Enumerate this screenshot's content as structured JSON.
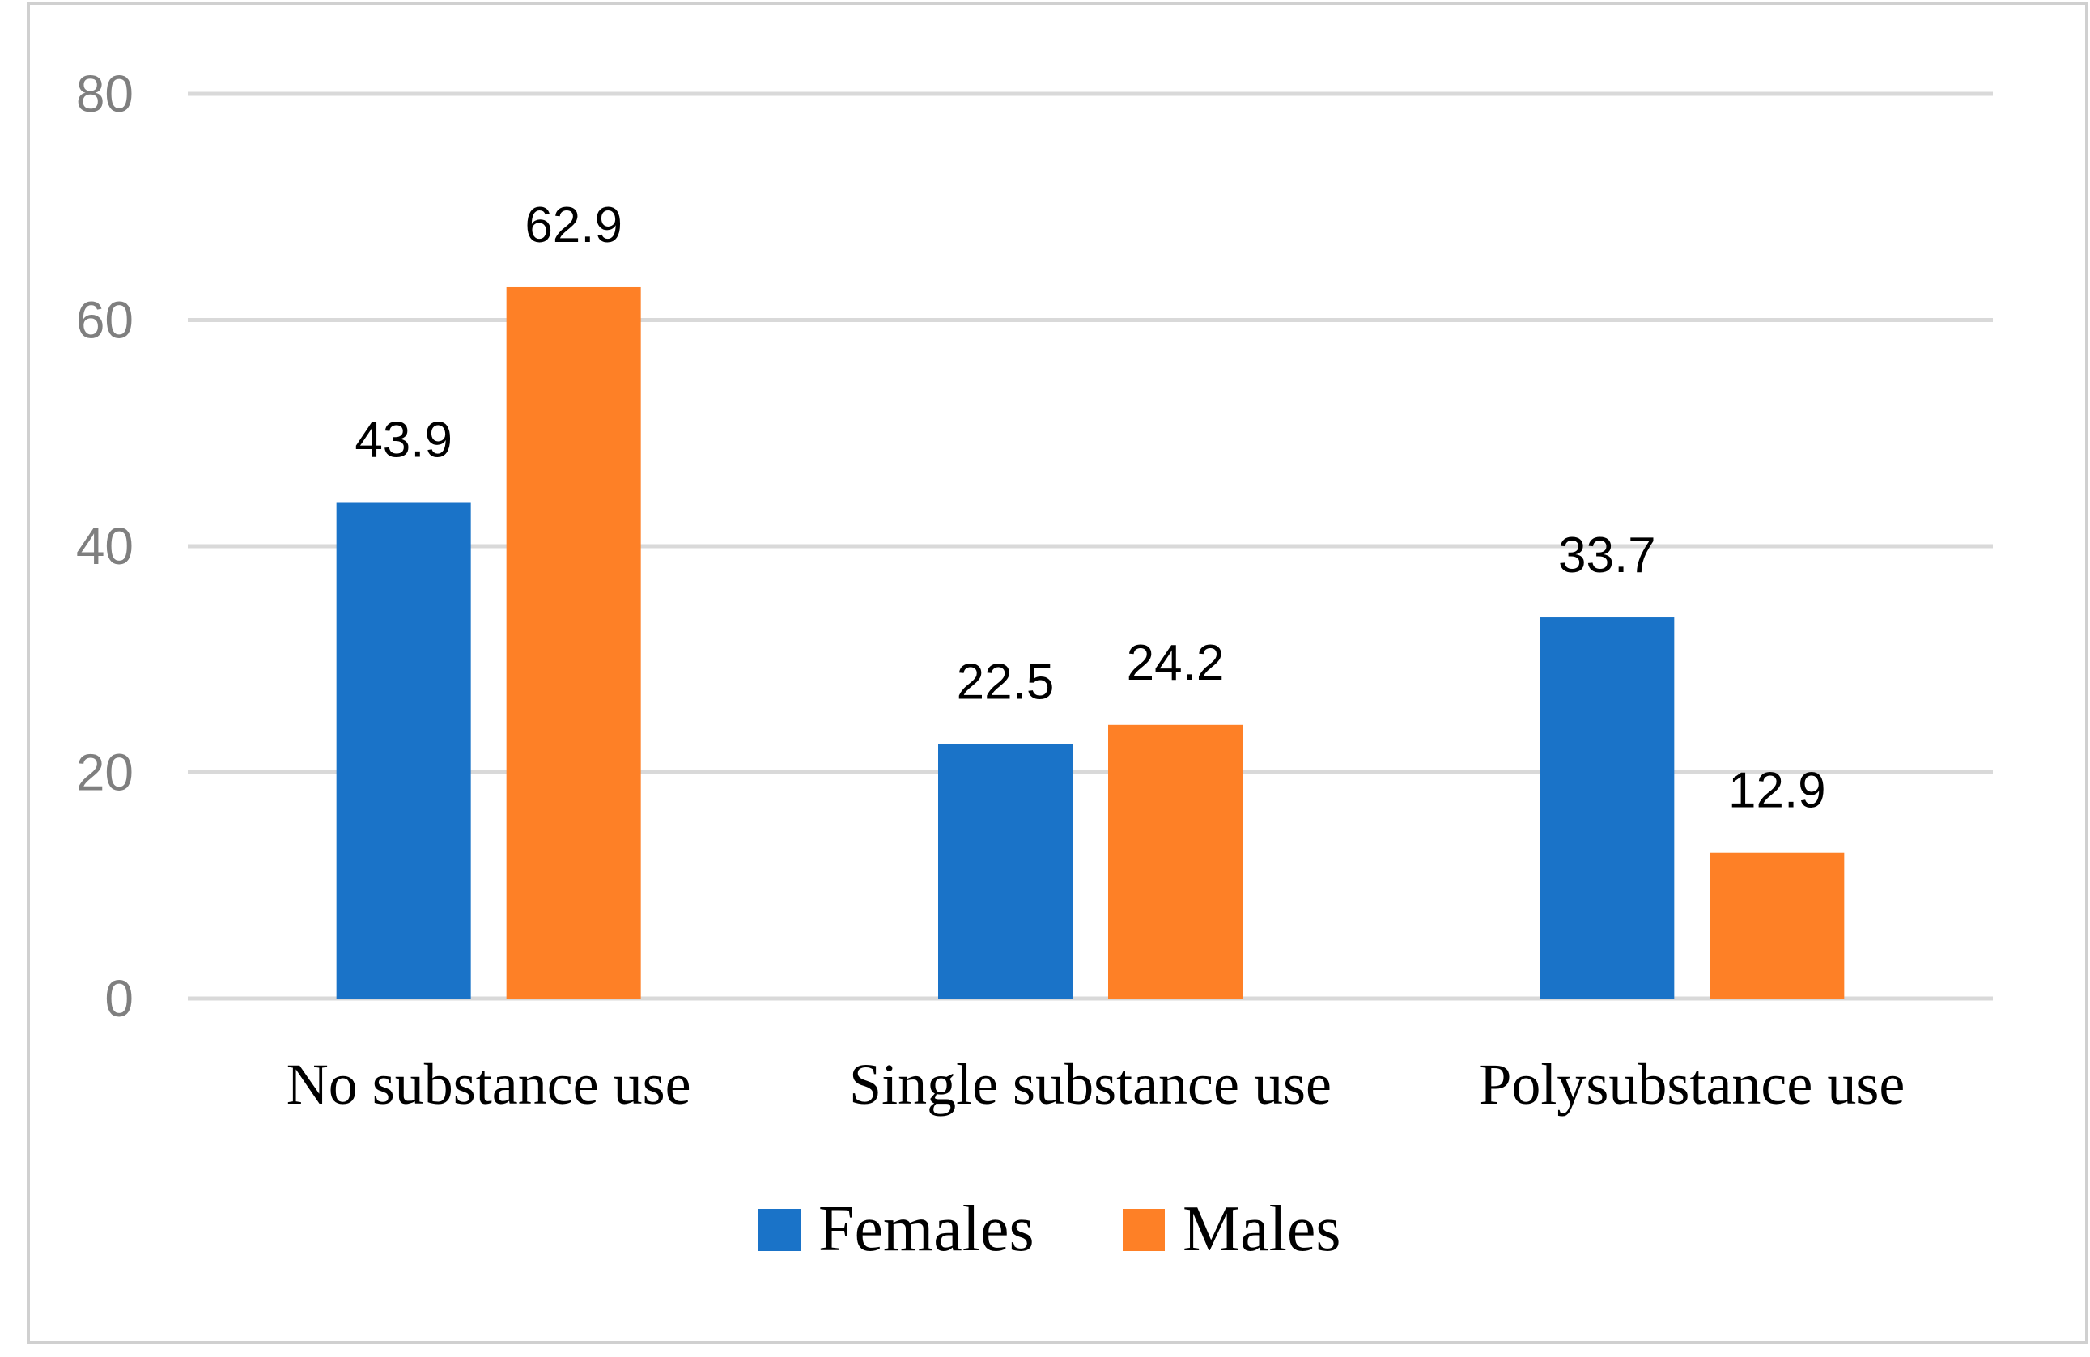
{
  "chart_data": {
    "type": "bar",
    "title": "",
    "xlabel": "",
    "ylabel": "",
    "ylim": [
      0,
      80
    ],
    "yticks": [
      0,
      20,
      40,
      60,
      80
    ],
    "grid": true,
    "legend_position": "bottom",
    "categories": [
      "No substance use",
      "Single substance use",
      "Polysubstance use"
    ],
    "series": [
      {
        "name": "Females",
        "color": "#1a73c8",
        "values": [
          43.9,
          22.5,
          33.7
        ],
        "labels": [
          "43.9",
          "22.5",
          "33.7"
        ]
      },
      {
        "name": "Males",
        "color": "#fe8026",
        "values": [
          62.9,
          24.2,
          12.9
        ],
        "labels": [
          "62.9",
          "24.2",
          "12.9"
        ]
      }
    ]
  },
  "colors": {
    "grid": "#d9d9d9",
    "frame": "#d0d0d0",
    "tick_text": "#7f7f7f"
  }
}
